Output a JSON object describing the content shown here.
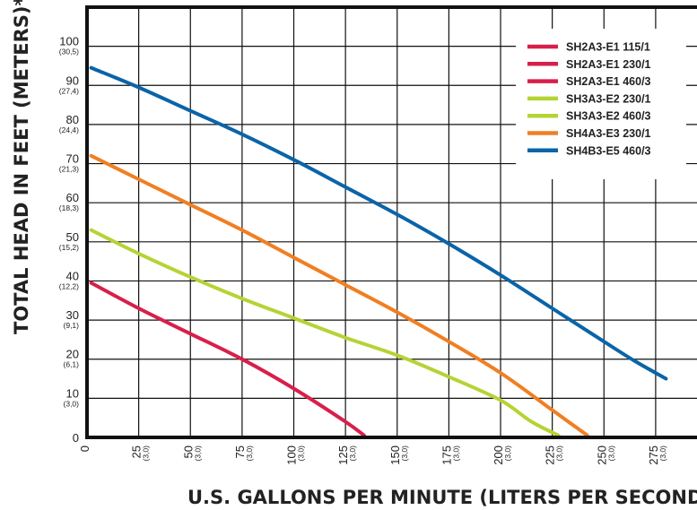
{
  "chart_data": {
    "type": "line",
    "ylabel": "TOTAL HEAD IN FEET (METERS)*",
    "xlabel": "U.S. GALLONS PER MINUTE (LITERS PER SECOND)",
    "xlim": [
      0,
      295
    ],
    "ylim": [
      0,
      110
    ],
    "grid": true,
    "legend_position": "top-right",
    "x_ticks": [
      {
        "value": 0,
        "label": "0",
        "sub": ""
      },
      {
        "value": 25,
        "label": "25",
        "sub": "(3,0)"
      },
      {
        "value": 50,
        "label": "50",
        "sub": "(3,0)"
      },
      {
        "value": 75,
        "label": "75",
        "sub": "(3,0)"
      },
      {
        "value": 100,
        "label": "100",
        "sub": "(3,0)"
      },
      {
        "value": 125,
        "label": "125",
        "sub": "(3,0)"
      },
      {
        "value": 150,
        "label": "150",
        "sub": "(3,0)"
      },
      {
        "value": 175,
        "label": "175",
        "sub": "(3,0)"
      },
      {
        "value": 200,
        "label": "200",
        "sub": "(3,0)"
      },
      {
        "value": 225,
        "label": "225",
        "sub": "(3,0)"
      },
      {
        "value": 250,
        "label": "250",
        "sub": "(3,0)"
      },
      {
        "value": 275,
        "label": "275",
        "sub": "(3,0)"
      }
    ],
    "y_ticks": [
      {
        "value": 0,
        "label": "0",
        "sub": ""
      },
      {
        "value": 10,
        "label": "10",
        "sub": "(3,0)"
      },
      {
        "value": 20,
        "label": "20",
        "sub": "(6,1)"
      },
      {
        "value": 30,
        "label": "30",
        "sub": "(9,1)"
      },
      {
        "value": 40,
        "label": "40",
        "sub": "(12,2)"
      },
      {
        "value": 50,
        "label": "50",
        "sub": "(15,2)"
      },
      {
        "value": 60,
        "label": "60",
        "sub": "(18,3)"
      },
      {
        "value": 70,
        "label": "70",
        "sub": "(21,3)"
      },
      {
        "value": 80,
        "label": "80",
        "sub": "(24,4)"
      },
      {
        "value": 90,
        "label": "90",
        "sub": "(27,4)"
      },
      {
        "value": 100,
        "label": "100",
        "sub": "(30,5)"
      }
    ],
    "legend": [
      {
        "label": "SH2A3-E1 115/1",
        "color": "#d81f4a"
      },
      {
        "label": "SH2A3-E1 230/1",
        "color": "#d81f4a"
      },
      {
        "label": "SH2A3-E1 460/3",
        "color": "#d81f4a"
      },
      {
        "label": "SH3A3-E2 230/1",
        "color": "#b5d335"
      },
      {
        "label": "SH3A3-E2 460/3",
        "color": "#b5d335"
      },
      {
        "label": "SH4A3-E3 230/1",
        "color": "#f07f23"
      },
      {
        "label": "SH4B3-E5 460/3",
        "color": "#0a64a8"
      }
    ],
    "series": [
      {
        "color": "#d81f4a",
        "points": [
          [
            2,
            39.5
          ],
          [
            25,
            33
          ],
          [
            50,
            26.5
          ],
          [
            75,
            20
          ],
          [
            100,
            12.5
          ],
          [
            125,
            4
          ],
          [
            134,
            0.5
          ]
        ]
      },
      {
        "color": "#b5d335",
        "points": [
          [
            2,
            53
          ],
          [
            25,
            47
          ],
          [
            50,
            41
          ],
          [
            75,
            35.5
          ],
          [
            100,
            30.5
          ],
          [
            125,
            25.5
          ],
          [
            150,
            21
          ],
          [
            175,
            15.5
          ],
          [
            200,
            9.5
          ],
          [
            215,
            4
          ],
          [
            228,
            0.5
          ]
        ]
      },
      {
        "color": "#f07f23",
        "points": [
          [
            2,
            72
          ],
          [
            25,
            66
          ],
          [
            50,
            59.5
          ],
          [
            75,
            53
          ],
          [
            100,
            46
          ],
          [
            125,
            39
          ],
          [
            150,
            32
          ],
          [
            175,
            24.5
          ],
          [
            200,
            16.5
          ],
          [
            225,
            7
          ],
          [
            242,
            0.5
          ]
        ]
      },
      {
        "color": "#0a64a8",
        "points": [
          [
            2,
            94.5
          ],
          [
            25,
            89.5
          ],
          [
            50,
            83.5
          ],
          [
            75,
            77.5
          ],
          [
            100,
            71
          ],
          [
            125,
            64
          ],
          [
            150,
            57
          ],
          [
            175,
            49.5
          ],
          [
            200,
            41.5
          ],
          [
            225,
            33
          ],
          [
            250,
            24.5
          ],
          [
            265,
            19.5
          ],
          [
            280,
            15
          ]
        ]
      }
    ]
  }
}
